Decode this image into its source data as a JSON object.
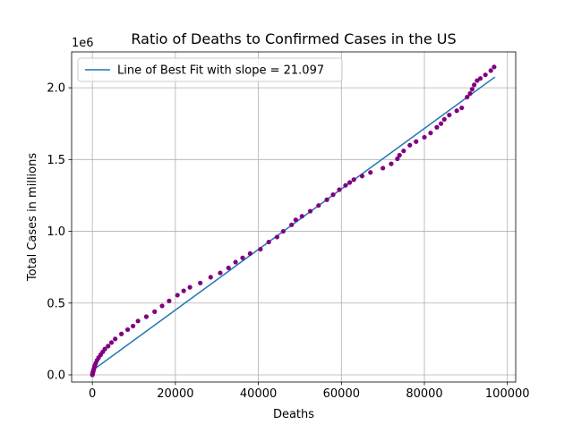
{
  "chart_data": {
    "type": "scatter",
    "title": "Ratio of Deaths to Confirmed Cases in the US",
    "xlabel": "Deaths",
    "ylabel": "Total Cases in millions",
    "y_offset_text": "1e6",
    "xlim": [
      -5000,
      102000
    ],
    "ylim": [
      -50000,
      2250000
    ],
    "xticks": [
      0,
      20000,
      40000,
      60000,
      80000,
      100000
    ],
    "xtick_labels": [
      "0",
      "20000",
      "40000",
      "60000",
      "80000",
      "100000"
    ],
    "yticks": [
      0,
      500000,
      1000000,
      1500000,
      2000000
    ],
    "ytick_labels": [
      "0.0",
      "0.5",
      "1.0",
      "1.5",
      "2.0"
    ],
    "grid": true,
    "legend_position": "top-left",
    "series": [
      {
        "name": "Line of Best Fit with slope = 21.097",
        "kind": "line",
        "color": "#1f77b4",
        "x": [
          0,
          97000
        ],
        "y": [
          30000,
          2075000
        ]
      },
      {
        "kind": "scatter",
        "color": "#800080",
        "x": [
          0,
          30,
          60,
          100,
          150,
          200,
          300,
          450,
          600,
          800,
          1100,
          1500,
          2000,
          2500,
          3000,
          3800,
          4600,
          5500,
          7000,
          8500,
          9800,
          11000,
          13000,
          15000,
          16800,
          18500,
          20500,
          22000,
          23500,
          26000,
          28500,
          30800,
          32800,
          34500,
          36200,
          38000,
          40500,
          42500,
          44500,
          46000,
          48000,
          49000,
          50500,
          52500,
          54500,
          56500,
          58000,
          59500,
          61000,
          62000,
          63000,
          65000,
          67000,
          70000,
          72000,
          73500,
          74000,
          75000,
          76500,
          78000,
          80000,
          81500,
          83000,
          84000,
          84800,
          86000,
          87800,
          89000,
          90300,
          91000,
          91500,
          92000,
          92700,
          93500,
          94700,
          96000,
          96800
        ],
        "y": [
          0,
          5000,
          10000,
          15000,
          20000,
          25000,
          35000,
          50000,
          65000,
          80000,
          100000,
          120000,
          140000,
          160000,
          180000,
          200000,
          225000,
          250000,
          285000,
          315000,
          340000,
          375000,
          405000,
          440000,
          480000,
          515000,
          555000,
          585000,
          610000,
          640000,
          680000,
          710000,
          745000,
          785000,
          815000,
          845000,
          875000,
          925000,
          960000,
          1000000,
          1045000,
          1080000,
          1105000,
          1140000,
          1180000,
          1220000,
          1255000,
          1290000,
          1320000,
          1340000,
          1360000,
          1385000,
          1410000,
          1440000,
          1470000,
          1505000,
          1530000,
          1560000,
          1600000,
          1625000,
          1655000,
          1685000,
          1725000,
          1750000,
          1780000,
          1810000,
          1840000,
          1860000,
          1935000,
          1960000,
          1990000,
          2020000,
          2050000,
          2065000,
          2090000,
          2120000,
          2145000
        ]
      }
    ]
  }
}
